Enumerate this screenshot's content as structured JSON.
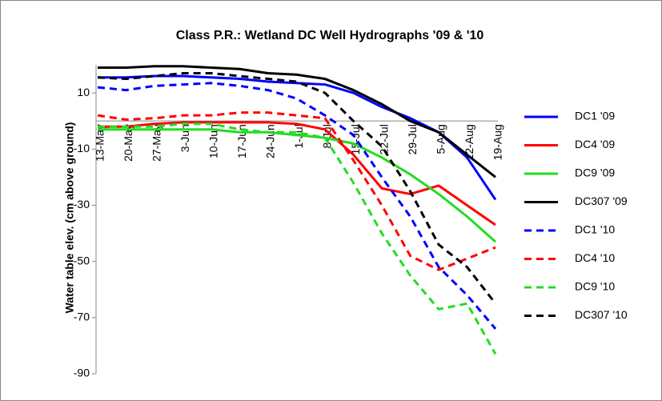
{
  "chart_data": {
    "type": "line",
    "title": "Class P.R.: Wetland DC Well Hydrographs '09 & '10",
    "y_label": "Water table elev. (cm above ground)",
    "categories": [
      "13-May",
      "20-May",
      "27-May",
      "3-Jun",
      "10-Jun",
      "17-Jun",
      "24-Jun",
      "1-Jul",
      "8-Jul",
      "15-Jul",
      "22-Jul",
      "29-Jul",
      "5-Aug",
      "12-Aug",
      "19-Aug"
    ],
    "ylim": [
      -90,
      20
    ],
    "yticks": [
      -90,
      -70,
      -50,
      -30,
      -10,
      10
    ],
    "grid": false,
    "legend": "right",
    "series": [
      {
        "name": "DC1 '09",
        "color": "#0000FF",
        "dashed": false,
        "values": [
          15.5,
          15.5,
          16,
          16,
          15.5,
          15,
          14,
          13.5,
          13,
          10,
          5,
          1,
          -4,
          -13,
          -28
        ]
      },
      {
        "name": "DC4 '09",
        "color": "#FF0000",
        "dashed": false,
        "values": [
          -2,
          -2,
          -1,
          -0.5,
          -0.5,
          -0.5,
          -0.5,
          -1,
          -3,
          -12,
          -24,
          -26,
          -23,
          -30,
          -37
        ]
      },
      {
        "name": "DC9 '09",
        "color": "#22DD22",
        "dashed": false,
        "values": [
          -3,
          -3,
          -3,
          -3,
          -3,
          -4,
          -4,
          -5,
          -6,
          -8,
          -13,
          -19,
          -26,
          -34,
          -43
        ]
      },
      {
        "name": "DC307 '09",
        "color": "#000000",
        "dashed": false,
        "values": [
          19,
          19,
          19.5,
          19.5,
          19,
          18.5,
          17,
          16.5,
          15,
          11,
          6,
          0,
          -4,
          -12,
          -20
        ]
      },
      {
        "name": "DC1 '10",
        "color": "#0000FF",
        "dashed": true,
        "values": [
          12,
          11,
          12.5,
          13,
          13.5,
          12.5,
          11,
          8,
          2,
          -5,
          -20,
          -34,
          -52,
          -62,
          -74
        ]
      },
      {
        "name": "DC4 '10",
        "color": "#FF0000",
        "dashed": true,
        "values": [
          2,
          0.5,
          1,
          2,
          2,
          3,
          3,
          2,
          1,
          -14,
          -30,
          -48,
          -53,
          -49,
          -45
        ]
      },
      {
        "name": "DC9 '10",
        "color": "#22DD22",
        "dashed": true,
        "values": [
          -2,
          -2,
          -2,
          -1,
          -1,
          -3,
          -4,
          -4,
          -6,
          -22,
          -40,
          -55,
          -67,
          -65,
          -83
        ]
      },
      {
        "name": "DC307 '10",
        "color": "#000000",
        "dashed": true,
        "values": [
          15.5,
          15,
          16,
          17,
          17,
          16,
          15,
          14,
          10,
          0,
          -9,
          -25,
          -44,
          -52,
          -65
        ]
      }
    ]
  }
}
